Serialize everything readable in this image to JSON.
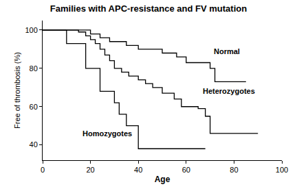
{
  "chart_data": {
    "type": "line",
    "title": "Families with APC-resistance and FV mutation",
    "x_label": "Age",
    "y_label": "Free of thrombosis (%)",
    "xlim": [
      0,
      100
    ],
    "xticks": [
      0,
      20,
      40,
      60,
      80,
      100
    ],
    "ylim": [
      32,
      105
    ],
    "yticks": [
      40,
      60,
      80,
      100
    ],
    "grid": false,
    "line_style": "step",
    "series": [
      {
        "name": "Normal",
        "color": "#000000",
        "x": [
          0,
          20,
          24,
          28,
          35,
          40,
          50,
          56,
          60,
          70,
          72,
          85
        ],
        "values": [
          100,
          98,
          96,
          94,
          92,
          90,
          88,
          86,
          83,
          80,
          73,
          73
        ]
      },
      {
        "name": "Heterozygotes",
        "color": "#000000",
        "x": [
          0,
          15,
          18,
          20,
          22,
          24,
          26,
          28,
          30,
          33,
          36,
          40,
          43,
          46,
          50,
          55,
          58,
          65,
          68,
          70,
          90
        ],
        "values": [
          100,
          99,
          97,
          95,
          93,
          90,
          87,
          84,
          80,
          78,
          76,
          74,
          72,
          70,
          67,
          64,
          60,
          59,
          55,
          46,
          46
        ]
      },
      {
        "name": "Homozygotes",
        "color": "#000000",
        "x": [
          0,
          10,
          18,
          24,
          30,
          32,
          35,
          40,
          68
        ],
        "values": [
          100,
          93,
          80,
          68,
          62,
          56,
          50,
          38,
          38
        ]
      }
    ],
    "annotations": [
      {
        "text": "Normal",
        "x": 77,
        "y": 89
      },
      {
        "text": "Heterozygotes",
        "x": 78,
        "y": 68
      },
      {
        "text": "Homozygotes",
        "x": 27,
        "y": 46
      }
    ]
  }
}
